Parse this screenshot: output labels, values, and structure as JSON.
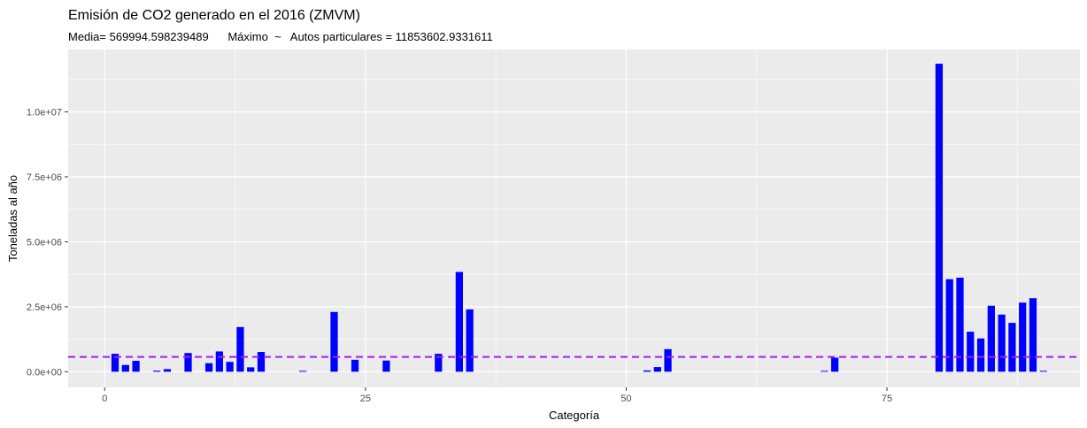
{
  "chart_data": {
    "type": "bar",
    "title": "Emisión de CO2 generado en el 2016 (ZMVM)",
    "subtitle": "Media= 569994.598239489      Máximo  ~   Autos particulares = 11853602.9331611",
    "xlabel": "Categoría",
    "ylabel": "Toneladas al año",
    "xlim": [
      -3.5,
      93.5
    ],
    "ylim": [
      -600000,
      12400000
    ],
    "xticks": [
      0,
      25,
      50,
      75
    ],
    "xtick_labels": [
      "0",
      "25",
      "50",
      "75"
    ],
    "yticks": [
      0,
      2500000,
      5000000,
      7500000,
      10000000
    ],
    "ytick_labels": [
      "0.0e+00",
      "2.5e+06",
      "5.0e+06",
      "7.5e+06",
      "1.0e+07"
    ],
    "mean_line": 569994.598239489,
    "grid": true,
    "colors": {
      "bars": "#0000ff",
      "mean_line": "#a020f0",
      "panel": "#ebebeb",
      "grid": "#ffffff"
    },
    "points": [
      {
        "x": 1,
        "y": 690000
      },
      {
        "x": 2,
        "y": 260000
      },
      {
        "x": 3,
        "y": 420000
      },
      {
        "x": 5,
        "y": 40000
      },
      {
        "x": 6,
        "y": 100000
      },
      {
        "x": 8,
        "y": 720000
      },
      {
        "x": 10,
        "y": 330000
      },
      {
        "x": 11,
        "y": 780000
      },
      {
        "x": 12,
        "y": 380000
      },
      {
        "x": 13,
        "y": 1720000
      },
      {
        "x": 14,
        "y": 170000
      },
      {
        "x": 15,
        "y": 760000
      },
      {
        "x": 19,
        "y": 30000
      },
      {
        "x": 22,
        "y": 2300000
      },
      {
        "x": 24,
        "y": 460000
      },
      {
        "x": 27,
        "y": 430000
      },
      {
        "x": 32,
        "y": 690000
      },
      {
        "x": 34,
        "y": 3840000
      },
      {
        "x": 35,
        "y": 2400000
      },
      {
        "x": 52,
        "y": 50000
      },
      {
        "x": 53,
        "y": 180000
      },
      {
        "x": 54,
        "y": 870000
      },
      {
        "x": 69,
        "y": 30000
      },
      {
        "x": 70,
        "y": 540000
      },
      {
        "x": 80,
        "y": 11853602.9331611
      },
      {
        "x": 81,
        "y": 3560000
      },
      {
        "x": 82,
        "y": 3620000
      },
      {
        "x": 83,
        "y": 1540000
      },
      {
        "x": 84,
        "y": 1280000
      },
      {
        "x": 85,
        "y": 2540000
      },
      {
        "x": 86,
        "y": 2200000
      },
      {
        "x": 87,
        "y": 1880000
      },
      {
        "x": 88,
        "y": 2660000
      },
      {
        "x": 89,
        "y": 2830000
      },
      {
        "x": 90,
        "y": 30000
      }
    ]
  }
}
